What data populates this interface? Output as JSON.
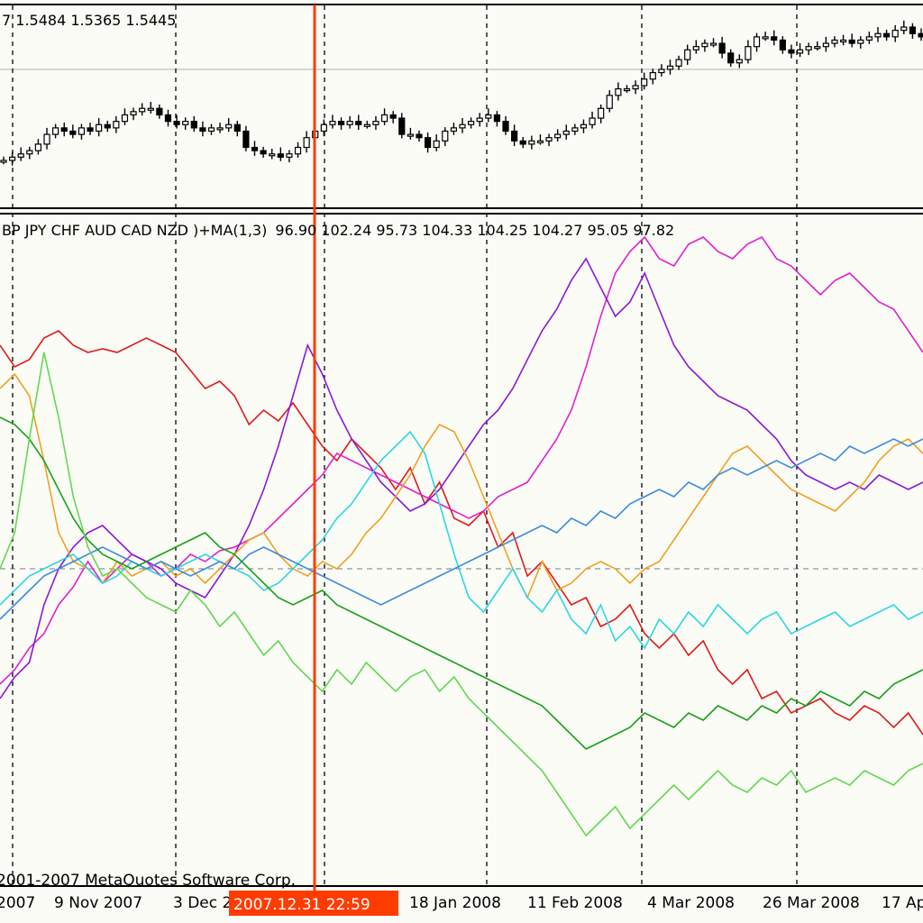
{
  "top_panel": {
    "ohlc_text": "7 1.5484 1.5365 1.5445"
  },
  "indicator_panel": {
    "label": "BP JPY CHF AUD CAD NZD )+MA(1,3)",
    "values": [
      "96.90",
      "102.24",
      "95.73",
      "104.33",
      "104.25",
      "104.27",
      "95.05",
      "97.82"
    ]
  },
  "copyright": "2001-2007 MetaQuotes Software Corp.",
  "cursor": {
    "label": "2007.12.31 22:59",
    "color": "#ff3c00"
  },
  "x_axis_labels": [
    "2007",
    "9 Nov 2007",
    "3 Dec 2",
    "18 Jan 2008",
    "11 Feb 2008",
    "4 Mar 2008",
    "26 Mar 2008",
    "17 Ap"
  ],
  "colors": {
    "background": "#fcfcf7",
    "grid": "#000000",
    "level_line": "#6b7b8c",
    "cursor": "#ff3c00"
  },
  "chart_data": [
    {
      "type": "candlestick",
      "description_series": "main price (top panel)",
      "y_levels_shown": [
        1.5445
      ],
      "close": [
        1.51,
        1.511,
        1.512,
        1.513,
        1.515,
        1.518,
        1.52,
        1.519,
        1.518,
        1.52,
        1.519,
        1.521,
        1.52,
        1.522,
        1.524,
        1.525,
        1.526,
        1.526,
        1.524,
        1.522,
        1.521,
        1.522,
        1.52,
        1.519,
        1.52,
        1.52,
        1.521,
        1.519,
        1.514,
        1.513,
        1.512,
        1.512,
        1.511,
        1.512,
        1.514,
        1.517,
        1.519,
        1.521,
        1.522,
        1.521,
        1.522,
        1.521,
        1.521,
        1.522,
        1.524,
        1.523,
        1.518,
        1.518,
        1.517,
        1.514,
        1.516,
        1.519,
        1.52,
        1.521,
        1.522,
        1.523,
        1.524,
        1.522,
        1.519,
        1.516,
        1.515,
        1.516,
        1.516,
        1.517,
        1.518,
        1.519,
        1.52,
        1.521,
        1.523,
        1.526,
        1.53,
        1.532,
        1.532,
        1.533,
        1.535,
        1.537,
        1.538,
        1.539,
        1.541,
        1.544,
        1.545,
        1.546,
        1.546,
        1.543,
        1.54,
        1.541,
        1.545,
        1.548,
        1.548,
        1.547,
        1.544,
        1.543,
        1.544,
        1.545,
        1.545,
        1.546,
        1.547,
        1.547,
        1.546,
        1.547,
        1.548,
        1.549,
        1.548,
        1.55,
        1.551,
        1.549,
        1.548
      ]
    },
    {
      "type": "line",
      "description_series": "currency strength lines (lower panel)",
      "series": [
        {
          "color": "#e01a1a",
          "values": [
            0.62,
            0.56,
            0.58,
            0.64,
            0.66,
            0.62,
            0.6,
            0.61,
            0.6,
            0.62,
            0.64,
            0.62,
            0.6,
            0.55,
            0.5,
            0.52,
            0.48,
            0.4,
            0.44,
            0.41,
            0.46,
            0.4,
            0.34,
            0.3,
            0.36,
            0.32,
            0.28,
            0.22,
            0.28,
            0.18,
            0.24,
            0.14,
            0.12,
            0.16,
            0.06,
            0.1,
            -0.02,
            0.02,
            -0.04,
            -0.1,
            -0.08,
            -0.16,
            -0.14,
            -0.1,
            -0.18,
            -0.22,
            -0.18,
            -0.24,
            -0.2,
            -0.28,
            -0.32,
            -0.28,
            -0.36,
            -0.34,
            -0.4,
            -0.38,
            -0.36,
            -0.4,
            -0.42,
            -0.38,
            -0.4,
            -0.44,
            -0.4,
            -0.46
          ]
        },
        {
          "color": "#e020d0",
          "values": [
            -0.32,
            -0.28,
            -0.22,
            -0.18,
            -0.1,
            -0.05,
            0.02,
            -0.04,
            0.0,
            0.04,
            0.02,
            -0.02,
            0.0,
            0.04,
            0.02,
            0.05,
            0.06,
            0.08,
            0.1,
            0.14,
            0.18,
            0.22,
            0.26,
            0.32,
            0.3,
            0.28,
            0.26,
            0.24,
            0.22,
            0.2,
            0.18,
            0.16,
            0.14,
            0.16,
            0.2,
            0.22,
            0.24,
            0.3,
            0.36,
            0.44,
            0.56,
            0.7,
            0.82,
            0.88,
            0.92,
            0.86,
            0.84,
            0.9,
            0.92,
            0.88,
            0.86,
            0.9,
            0.92,
            0.86,
            0.84,
            0.8,
            0.76,
            0.8,
            0.82,
            0.78,
            0.74,
            0.72,
            0.66,
            0.6
          ]
        },
        {
          "color": "#8a18d8",
          "values": [
            -0.36,
            -0.3,
            -0.26,
            -0.1,
            0.0,
            0.06,
            0.1,
            0.12,
            0.08,
            0.04,
            0.02,
            0.0,
            -0.04,
            -0.06,
            -0.08,
            -0.02,
            0.04,
            0.12,
            0.22,
            0.34,
            0.48,
            0.62,
            0.54,
            0.44,
            0.36,
            0.3,
            0.24,
            0.2,
            0.16,
            0.18,
            0.22,
            0.28,
            0.34,
            0.4,
            0.44,
            0.5,
            0.58,
            0.66,
            0.72,
            0.8,
            0.86,
            0.78,
            0.7,
            0.74,
            0.82,
            0.72,
            0.62,
            0.56,
            0.52,
            0.48,
            0.46,
            0.44,
            0.4,
            0.36,
            0.3,
            0.26,
            0.24,
            0.22,
            0.24,
            0.22,
            0.26,
            0.24,
            0.22,
            0.24
          ]
        },
        {
          "color": "#f0a020",
          "values": [
            0.5,
            0.54,
            0.48,
            0.3,
            0.1,
            0.02,
            0.0,
            -0.04,
            0.02,
            -0.02,
            0.0,
            0.02,
            -0.02,
            0.0,
            -0.04,
            0.0,
            0.04,
            0.08,
            0.1,
            0.04,
            0.0,
            -0.02,
            0.02,
            0.0,
            0.04,
            0.1,
            0.14,
            0.2,
            0.26,
            0.34,
            0.4,
            0.38,
            0.3,
            0.2,
            0.1,
            0.0,
            -0.08,
            0.02,
            -0.06,
            -0.04,
            0.0,
            0.02,
            0.0,
            -0.04,
            0.0,
            0.02,
            0.08,
            0.14,
            0.2,
            0.26,
            0.32,
            0.34,
            0.3,
            0.26,
            0.22,
            0.2,
            0.18,
            0.16,
            0.2,
            0.24,
            0.3,
            0.34,
            0.36,
            0.32
          ]
        },
        {
          "color": "#2ad8e0",
          "values": [
            -0.1,
            -0.06,
            -0.02,
            0.0,
            0.02,
            0.04,
            0.0,
            -0.04,
            -0.02,
            0.02,
            0.0,
            -0.02,
            0.0,
            0.02,
            0.04,
            0.02,
            0.0,
            -0.02,
            -0.06,
            -0.04,
            0.0,
            0.04,
            0.08,
            0.14,
            0.18,
            0.24,
            0.3,
            0.34,
            0.38,
            0.32,
            0.18,
            0.04,
            -0.08,
            -0.12,
            -0.06,
            0.0,
            -0.08,
            -0.12,
            -0.06,
            -0.14,
            -0.18,
            -0.1,
            -0.2,
            -0.16,
            -0.22,
            -0.14,
            -0.18,
            -0.12,
            -0.16,
            -0.1,
            -0.14,
            -0.18,
            -0.14,
            -0.12,
            -0.18,
            -0.16,
            -0.14,
            -0.12,
            -0.16,
            -0.14,
            -0.12,
            -0.1,
            -0.14,
            -0.12
          ]
        },
        {
          "color": "#3a8ce0",
          "values": [
            -0.14,
            -0.1,
            -0.06,
            -0.02,
            0.0,
            0.02,
            0.04,
            0.06,
            0.04,
            0.02,
            0.0,
            0.02,
            0.0,
            -0.02,
            0.0,
            0.02,
            0.0,
            0.04,
            0.06,
            0.04,
            0.02,
            0.0,
            -0.02,
            -0.04,
            -0.06,
            -0.08,
            -0.1,
            -0.08,
            -0.06,
            -0.04,
            -0.02,
            0.0,
            0.02,
            0.04,
            0.06,
            0.08,
            0.1,
            0.12,
            0.1,
            0.14,
            0.12,
            0.16,
            0.14,
            0.18,
            0.2,
            0.22,
            0.2,
            0.24,
            0.22,
            0.26,
            0.28,
            0.26,
            0.28,
            0.3,
            0.28,
            0.3,
            0.32,
            0.3,
            0.34,
            0.32,
            0.34,
            0.36,
            0.34,
            0.36
          ]
        },
        {
          "color": "#18a018",
          "values": [
            0.42,
            0.4,
            0.36,
            0.3,
            0.22,
            0.14,
            0.08,
            0.04,
            0.02,
            0.0,
            0.02,
            0.04,
            0.06,
            0.08,
            0.1,
            0.06,
            0.04,
            0.0,
            -0.04,
            -0.08,
            -0.1,
            -0.08,
            -0.06,
            -0.1,
            -0.12,
            -0.14,
            -0.16,
            -0.18,
            -0.2,
            -0.22,
            -0.24,
            -0.26,
            -0.28,
            -0.3,
            -0.32,
            -0.34,
            -0.36,
            -0.38,
            -0.42,
            -0.46,
            -0.5,
            -0.48,
            -0.46,
            -0.44,
            -0.4,
            -0.42,
            -0.44,
            -0.4,
            -0.42,
            -0.38,
            -0.4,
            -0.42,
            -0.38,
            -0.4,
            -0.36,
            -0.38,
            -0.34,
            -0.36,
            -0.38,
            -0.34,
            -0.36,
            -0.32,
            -0.3,
            -0.28
          ]
        },
        {
          "color": "#60d850",
          "values": [
            0.0,
            0.1,
            0.36,
            0.6,
            0.42,
            0.2,
            0.06,
            -0.02,
            0.0,
            -0.04,
            -0.08,
            -0.1,
            -0.12,
            -0.06,
            -0.1,
            -0.16,
            -0.12,
            -0.18,
            -0.24,
            -0.2,
            -0.26,
            -0.3,
            -0.34,
            -0.28,
            -0.32,
            -0.26,
            -0.3,
            -0.34,
            -0.3,
            -0.28,
            -0.34,
            -0.3,
            -0.36,
            -0.4,
            -0.44,
            -0.48,
            -0.52,
            -0.56,
            -0.62,
            -0.68,
            -0.74,
            -0.7,
            -0.66,
            -0.72,
            -0.68,
            -0.64,
            -0.6,
            -0.64,
            -0.6,
            -0.56,
            -0.6,
            -0.62,
            -0.58,
            -0.6,
            -0.56,
            -0.62,
            -0.6,
            -0.58,
            -0.6,
            -0.56,
            -0.58,
            -0.6,
            -0.56,
            -0.54
          ]
        }
      ]
    }
  ]
}
